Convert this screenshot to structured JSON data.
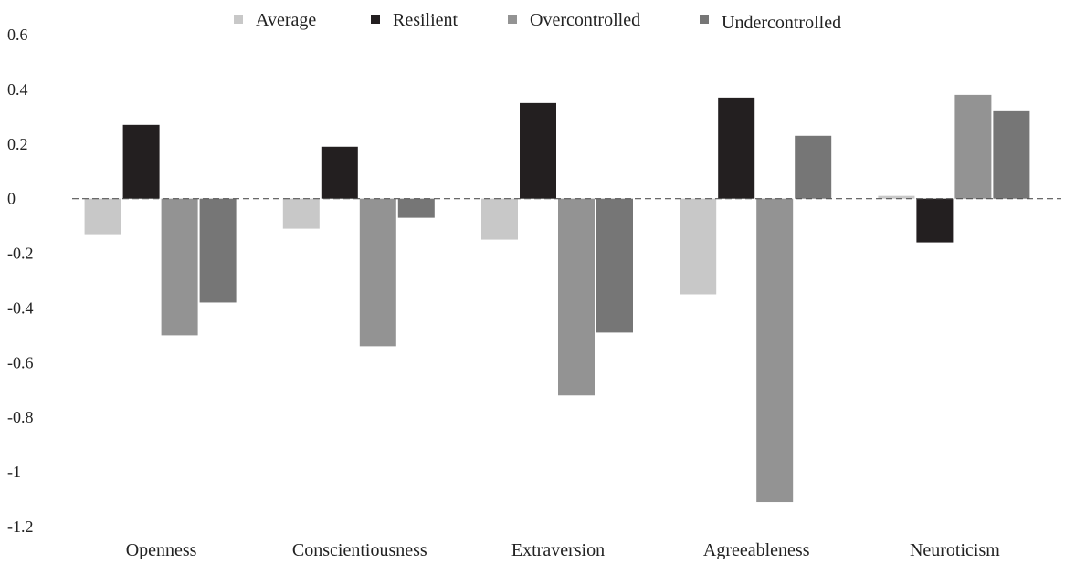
{
  "chart_data": {
    "type": "bar",
    "categories": [
      "Openness",
      "Conscientiousness",
      "Extraversion",
      "Agreeableness",
      "Neuroticism"
    ],
    "series": [
      {
        "name": "Average",
        "color": "#c8c8c8",
        "values": [
          -0.13,
          -0.11,
          -0.15,
          -0.35,
          0.01
        ]
      },
      {
        "name": "Resilient",
        "color": "#231f20",
        "values": [
          0.27,
          0.19,
          0.35,
          0.37,
          -0.16
        ]
      },
      {
        "name": "Overcontrolled",
        "color": "#939393",
        "values": [
          -0.5,
          -0.54,
          -0.72,
          -1.11,
          0.38
        ]
      },
      {
        "name": "Undercontrolled",
        "color": "#767676",
        "values": [
          -0.38,
          -0.07,
          -0.49,
          0.23,
          0.32
        ]
      }
    ],
    "ylim": [
      -1.2,
      0.6
    ],
    "yticks": [
      "0.6",
      "0.4",
      "0.2",
      "0",
      "-0.2",
      "-0.4",
      "-0.6",
      "-0.8",
      "-1",
      "-1.2"
    ],
    "title": "",
    "xlabel": "",
    "ylabel": "",
    "legend_position": "top",
    "grid": false,
    "zero_line": "dashed"
  }
}
